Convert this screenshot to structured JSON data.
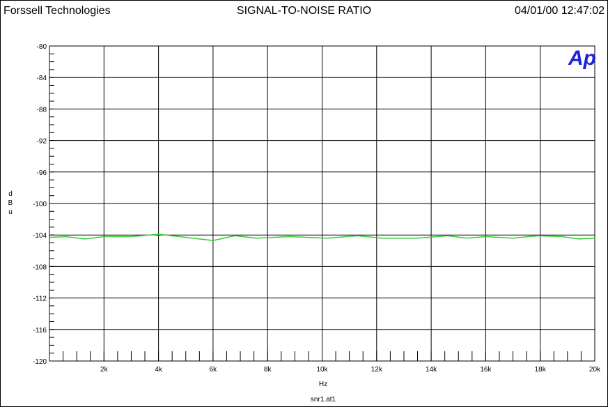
{
  "header": {
    "company": "Forssell Technologies",
    "title": "SIGNAL-TO-NOISE RATIO",
    "timestamp": "04/01/00 12:47:02"
  },
  "logo": {
    "text": "Ap",
    "color": "#1c22d8"
  },
  "footer": {
    "filename": "snr1.at1"
  },
  "chart_data": {
    "type": "line",
    "xlabel": "Hz",
    "ylabel": "dBu",
    "xlim": [
      0,
      20000
    ],
    "ylim": [
      -120,
      -80
    ],
    "x_ticks": [
      2000,
      4000,
      6000,
      8000,
      10000,
      12000,
      14000,
      16000,
      18000,
      20000
    ],
    "x_tick_labels": [
      "2k",
      "4k",
      "6k",
      "8k",
      "10k",
      "12k",
      "14k",
      "16k",
      "18k",
      "20k"
    ],
    "y_ticks": [
      -80,
      -84,
      -88,
      -92,
      -96,
      -100,
      -104,
      -108,
      -112,
      -116,
      -120
    ],
    "y_tick_labels": [
      "-80",
      "-84",
      "-88",
      "-92",
      "-96",
      "-100",
      "-104",
      "-108",
      "-112",
      "-116",
      "-120"
    ],
    "grid": true,
    "series": [
      {
        "color": "#33cc33",
        "x": [
          0,
          600,
          1300,
          2000,
          3000,
          4000,
          5000,
          6000,
          6800,
          7600,
          8800,
          10200,
          11300,
          12200,
          13500,
          14600,
          15300,
          16000,
          17000,
          17900,
          18800,
          19400,
          20000
        ],
        "y": [
          -104.3,
          -104.2,
          -104.5,
          -104.2,
          -104.2,
          -103.9,
          -104.3,
          -104.7,
          -104.1,
          -104.4,
          -104.2,
          -104.4,
          -104.1,
          -104.4,
          -104.4,
          -104.1,
          -104.4,
          -104.2,
          -104.4,
          -104.1,
          -104.2,
          -104.5,
          -104.4
        ]
      }
    ]
  }
}
